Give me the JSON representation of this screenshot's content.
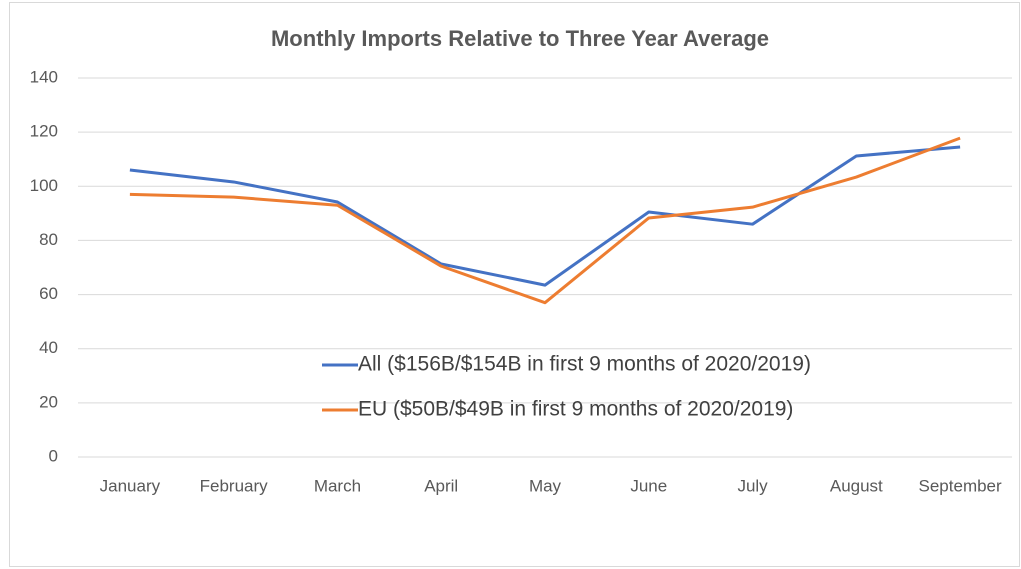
{
  "chart_data": {
    "type": "line",
    "title": "Monthly Imports Relative to Three Year Average",
    "categories": [
      "January",
      "February",
      "March",
      "April",
      "May",
      "June",
      "July",
      "August",
      "September"
    ],
    "series": [
      {
        "name": "All ($156B/$154B in first 9 months of 2020/2019)",
        "color": "#4472c4",
        "values": [
          106,
          101.6,
          94.2,
          71.3,
          63.5,
          90.5,
          86,
          111.2,
          114.5
        ]
      },
      {
        "name": "EU ($50B/$49B in first 9 months of 2020/2019)",
        "color": "#ed7d31",
        "values": [
          97,
          96,
          93,
          70.5,
          57,
          88.3,
          92.3,
          103.4,
          117.8
        ]
      }
    ],
    "ylim": [
      0,
      140
    ],
    "yticks": [
      0,
      20,
      40,
      60,
      80,
      100,
      120,
      140
    ],
    "grid": true
  }
}
